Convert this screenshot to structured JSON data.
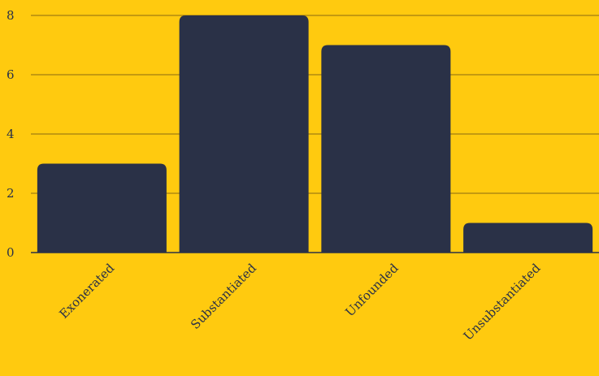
{
  "chart_data": {
    "type": "bar",
    "categories": [
      "Exonerated",
      "Substantiated",
      "Unfounded",
      "Unsubstantiated"
    ],
    "values": [
      3,
      8,
      7,
      1
    ],
    "title": "",
    "xlabel": "",
    "ylabel": "",
    "ylim": [
      0,
      8
    ],
    "yticks": [
      {
        "value": 0,
        "label": "0"
      },
      {
        "value": 2,
        "label": "2"
      },
      {
        "value": 4,
        "label": "4"
      },
      {
        "value": 6,
        "label": "6"
      },
      {
        "value": 8,
        "label": "8"
      }
    ],
    "grid": "horizontal",
    "legend": "none"
  },
  "colors": {
    "background": "#FFCA0F",
    "bar": "#2A3147",
    "gridline": "#8A6A12",
    "text": "#2A3147"
  }
}
